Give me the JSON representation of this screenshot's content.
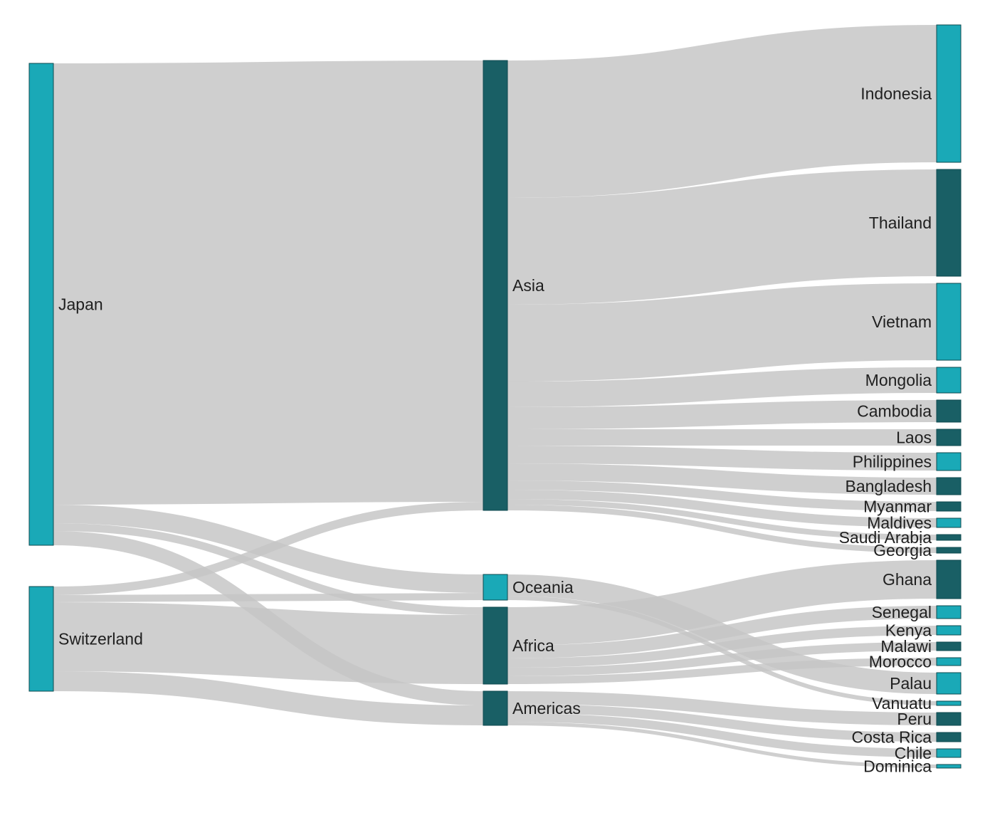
{
  "chart_data": {
    "type": "sankey",
    "colors": {
      "teal": "#1aa9b7",
      "dark_teal": "#195f65",
      "link": "#c4c4c4"
    },
    "nodes": [
      {
        "id": "Japan",
        "label": "Japan",
        "color": "teal"
      },
      {
        "id": "Switzerland",
        "label": "Switzerland",
        "color": "teal"
      },
      {
        "id": "Asia",
        "label": "Asia",
        "color": "dark_teal"
      },
      {
        "id": "Oceania",
        "label": "Oceania",
        "color": "teal"
      },
      {
        "id": "Africa",
        "label": "Africa",
        "color": "dark_teal"
      },
      {
        "id": "Americas",
        "label": "Americas",
        "color": "dark_teal"
      },
      {
        "id": "Indonesia",
        "label": "Indonesia",
        "color": "teal"
      },
      {
        "id": "Thailand",
        "label": "Thailand",
        "color": "dark_teal"
      },
      {
        "id": "Vietnam",
        "label": "Vietnam",
        "color": "teal"
      },
      {
        "id": "Mongolia",
        "label": "Mongolia",
        "color": "teal"
      },
      {
        "id": "Cambodia",
        "label": "Cambodia",
        "color": "dark_teal"
      },
      {
        "id": "Laos",
        "label": "Laos",
        "color": "dark_teal"
      },
      {
        "id": "Philippines",
        "label": "Philippines",
        "color": "teal"
      },
      {
        "id": "Bangladesh",
        "label": "Bangladesh",
        "color": "dark_teal"
      },
      {
        "id": "Myanmar",
        "label": "Myanmar",
        "color": "dark_teal"
      },
      {
        "id": "Maldives",
        "label": "Maldives",
        "color": "teal"
      },
      {
        "id": "Saudi Arabia",
        "label": "Saudi Arabia",
        "color": "dark_teal"
      },
      {
        "id": "Georgia",
        "label": "Georgia",
        "color": "dark_teal"
      },
      {
        "id": "Ghana",
        "label": "Ghana",
        "color": "dark_teal"
      },
      {
        "id": "Senegal",
        "label": "Senegal",
        "color": "teal"
      },
      {
        "id": "Kenya",
        "label": "Kenya",
        "color": "teal"
      },
      {
        "id": "Malawi",
        "label": "Malawi",
        "color": "dark_teal"
      },
      {
        "id": "Morocco",
        "label": "Morocco",
        "color": "teal"
      },
      {
        "id": "Palau",
        "label": "Palau",
        "color": "teal"
      },
      {
        "id": "Vanuatu",
        "label": "Vanuatu",
        "color": "teal"
      },
      {
        "id": "Peru",
        "label": "Peru",
        "color": "dark_teal"
      },
      {
        "id": "Costa Rica",
        "label": "Costa Rica",
        "color": "dark_teal"
      },
      {
        "id": "Chile",
        "label": "Chile",
        "color": "teal"
      },
      {
        "id": "Dominica",
        "label": "Dominica",
        "color": "teal"
      }
    ],
    "links": [
      {
        "source": "Japan",
        "target": "Asia",
        "value": 620
      },
      {
        "source": "Japan",
        "target": "Oceania",
        "value": 26
      },
      {
        "source": "Japan",
        "target": "Africa",
        "value": 11
      },
      {
        "source": "Japan",
        "target": "Americas",
        "value": 20
      },
      {
        "source": "Switzerland",
        "target": "Asia",
        "value": 12
      },
      {
        "source": "Switzerland",
        "target": "Oceania",
        "value": 10
      },
      {
        "source": "Switzerland",
        "target": "Africa",
        "value": 97
      },
      {
        "source": "Switzerland",
        "target": "Americas",
        "value": 28
      },
      {
        "source": "Asia",
        "target": "Indonesia",
        "value": 193
      },
      {
        "source": "Asia",
        "target": "Thailand",
        "value": 150
      },
      {
        "source": "Asia",
        "target": "Vietnam",
        "value": 108
      },
      {
        "source": "Asia",
        "target": "Mongolia",
        "value": 36
      },
      {
        "source": "Asia",
        "target": "Cambodia",
        "value": 31
      },
      {
        "source": "Asia",
        "target": "Laos",
        "value": 23
      },
      {
        "source": "Asia",
        "target": "Philippines",
        "value": 25
      },
      {
        "source": "Asia",
        "target": "Bangladesh",
        "value": 24
      },
      {
        "source": "Asia",
        "target": "Myanmar",
        "value": 13
      },
      {
        "source": "Asia",
        "target": "Maldives",
        "value": 13
      },
      {
        "source": "Asia",
        "target": "Saudi Arabia",
        "value": 8
      },
      {
        "source": "Asia",
        "target": "Georgia",
        "value": 8
      },
      {
        "source": "Oceania",
        "target": "Palau",
        "value": 30
      },
      {
        "source": "Oceania",
        "target": "Vanuatu",
        "value": 6
      },
      {
        "source": "Africa",
        "target": "Ghana",
        "value": 54
      },
      {
        "source": "Africa",
        "target": "Senegal",
        "value": 18
      },
      {
        "source": "Africa",
        "target": "Kenya",
        "value": 13
      },
      {
        "source": "Africa",
        "target": "Malawi",
        "value": 12
      },
      {
        "source": "Africa",
        "target": "Morocco",
        "value": 11
      },
      {
        "source": "Americas",
        "target": "Peru",
        "value": 18
      },
      {
        "source": "Americas",
        "target": "Costa Rica",
        "value": 13
      },
      {
        "source": "Americas",
        "target": "Chile",
        "value": 12
      },
      {
        "source": "Americas",
        "target": "Dominica",
        "value": 5
      }
    ]
  }
}
